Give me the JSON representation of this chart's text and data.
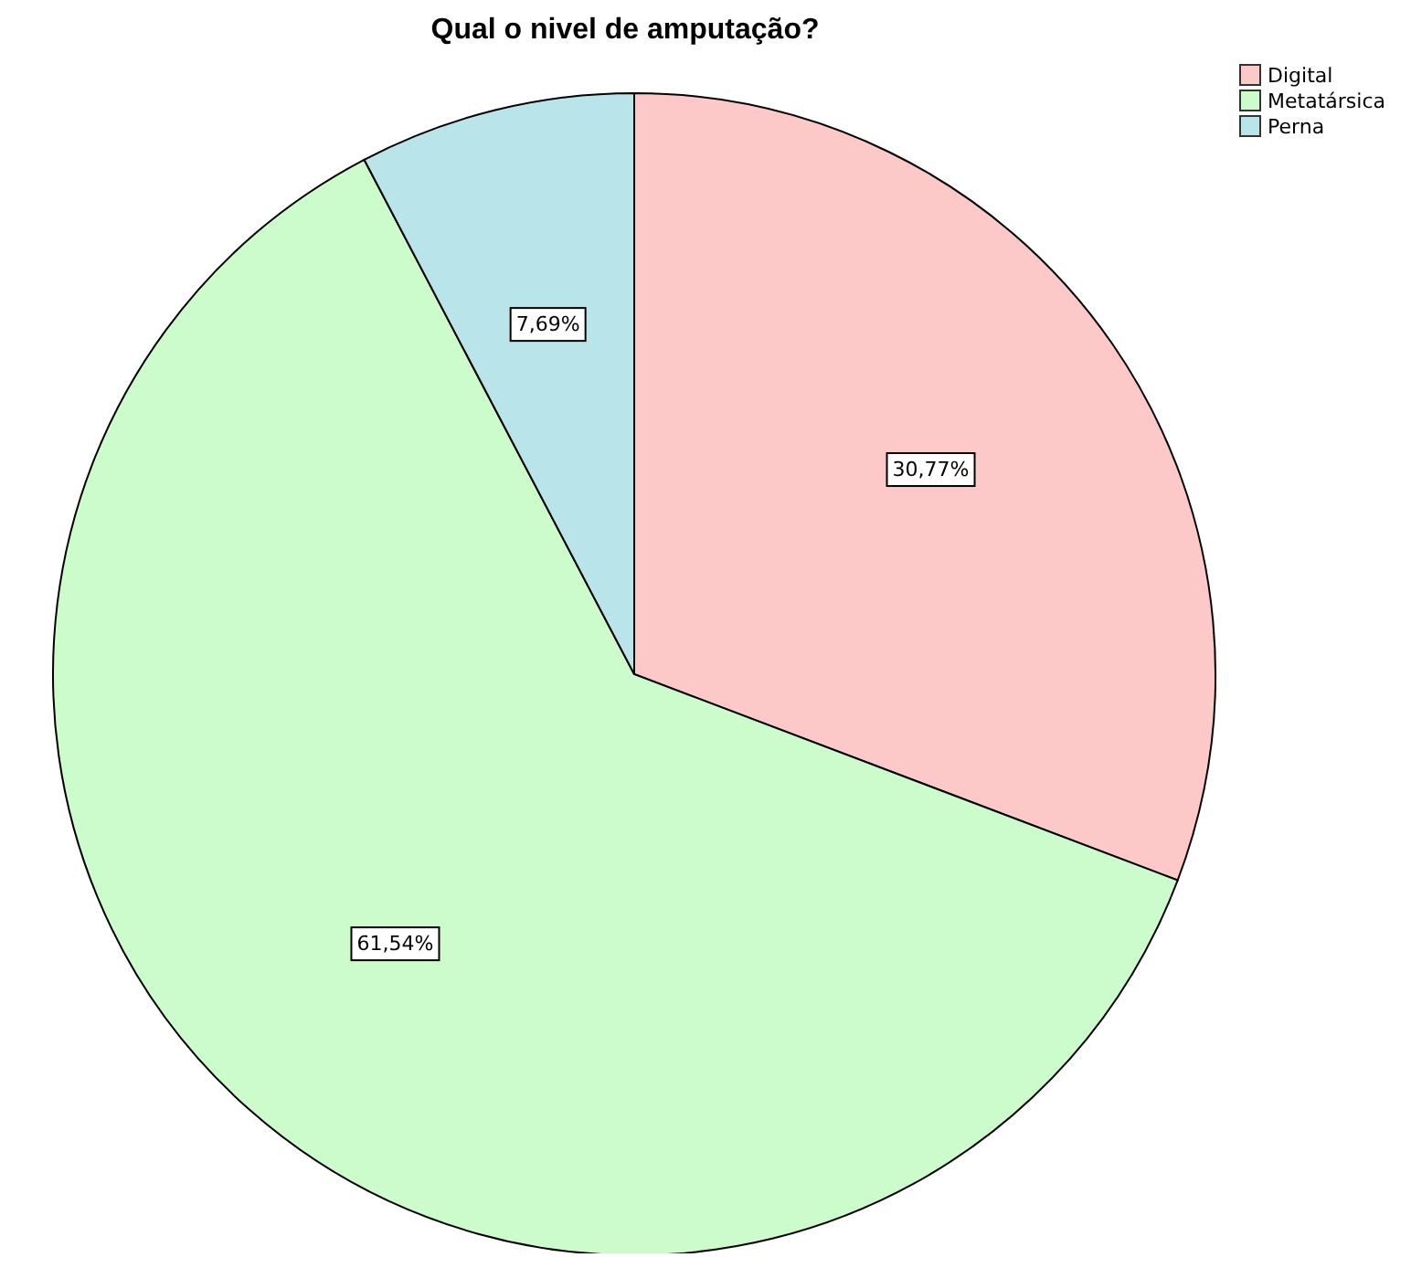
{
  "chart_data": {
    "type": "pie",
    "title": "Qual o nivel de amputação?",
    "categories": [
      "Digital",
      "Metatársica",
      "Perna"
    ],
    "values": [
      30.77,
      61.54,
      7.69
    ],
    "colors": [
      "#fcc8c8",
      "#ccfccc",
      "#b8e4ea"
    ],
    "value_labels": [
      "30,77%",
      "61,54%",
      "7,69%"
    ],
    "legend": "top right"
  }
}
